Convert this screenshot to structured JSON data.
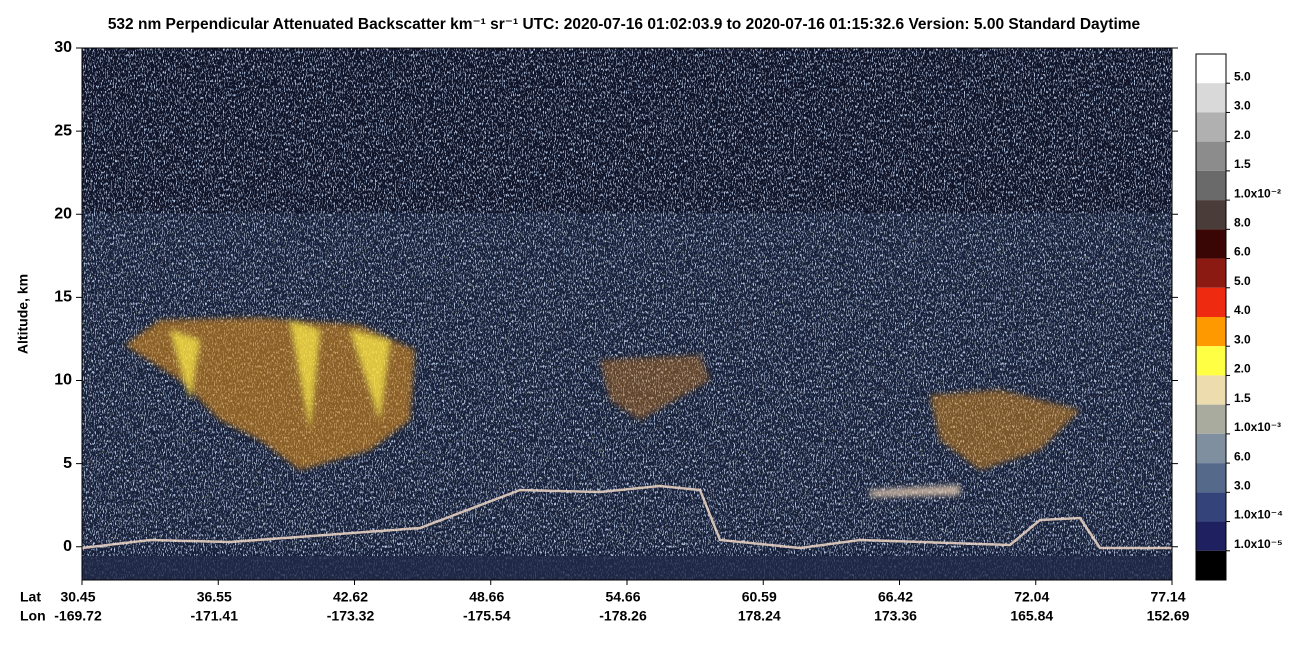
{
  "chart_data": {
    "type": "heatmap",
    "title": "532 nm Perpendicular Attenuated Backscatter km⁻¹ sr⁻¹  UTC: 2020-07-16 01:02:03.9 to 2020-07-16 01:15:32.6  Version: 5.00 Standard Daytime",
    "y_label": "Altitude, km",
    "ylim": [
      -2,
      30
    ],
    "yticks": [
      0,
      5,
      10,
      15,
      20,
      25,
      30
    ],
    "x_row_labels": [
      "Lat",
      "Lon"
    ],
    "lat": [
      "30.45",
      "36.55",
      "42.62",
      "48.66",
      "54.66",
      "60.59",
      "66.42",
      "72.04",
      "77.14"
    ],
    "lon": [
      "-169.72",
      "-171.41",
      "-173.32",
      "-175.54",
      "-178.26",
      "178.24",
      "173.36",
      "165.84",
      "152.69"
    ],
    "colorbar": {
      "colors": [
        "#ffffff",
        "#d9d9d9",
        "#b0b0b0",
        "#8c8c8c",
        "#6a6a6a",
        "#4a3c38",
        "#3a0505",
        "#8b1a12",
        "#ee2a10",
        "#ff9900",
        "#ffff44",
        "#ecdcae",
        "#a9ab9f",
        "#7f8f9f",
        "#55698a",
        "#34437a",
        "#1e2060",
        "#000000"
      ],
      "labels": [
        "5.0",
        "3.0",
        "2.0",
        "1.5",
        "1.0x10⁻²",
        "8.0",
        "6.0",
        "5.0",
        "4.0",
        "3.0",
        "2.0",
        "1.5",
        "1.0x10⁻³",
        "6.0",
        "3.0",
        "1.0x10⁻⁴",
        "1.0x10⁻⁵"
      ]
    }
  }
}
